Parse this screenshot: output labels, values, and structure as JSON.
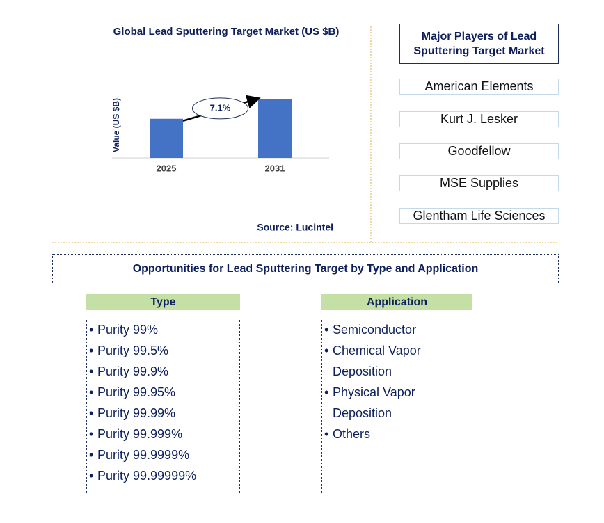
{
  "chart_data": {
    "type": "bar",
    "title": "Global Lead Sputtering Target Market (US $B)",
    "y_label": "Value (US $B)",
    "categories": [
      "2025",
      "2031"
    ],
    "values": [
      1.0,
      1.51
    ],
    "color": "#4472c4",
    "ylim": [
      0,
      1.6
    ],
    "annotation": "7.1%",
    "source": "Source: Lucintel"
  },
  "players": {
    "title": "Major Players of Lead Sputtering Target Market",
    "items": [
      "American Elements",
      "Kurt J. Lesker",
      "Goodfellow",
      "MSE Supplies",
      "Glentham Life Sciences"
    ]
  },
  "opportunities": {
    "title": "Opportunities for Lead Sputtering Target by Type and Application",
    "type": {
      "title": "Type",
      "items": [
        "Purity 99%",
        "Purity 99.5%",
        "Purity 99.9%",
        "Purity 99.95%",
        "Purity 99.99%",
        "Purity 99.999%",
        "Purity 99.9999%",
        "Purity 99.99999%"
      ]
    },
    "application": {
      "title": "Application",
      "items": [
        "Semiconductor",
        "Chemical Vapor Deposition",
        "Physical Vapor Deposition",
        "Others"
      ]
    }
  }
}
